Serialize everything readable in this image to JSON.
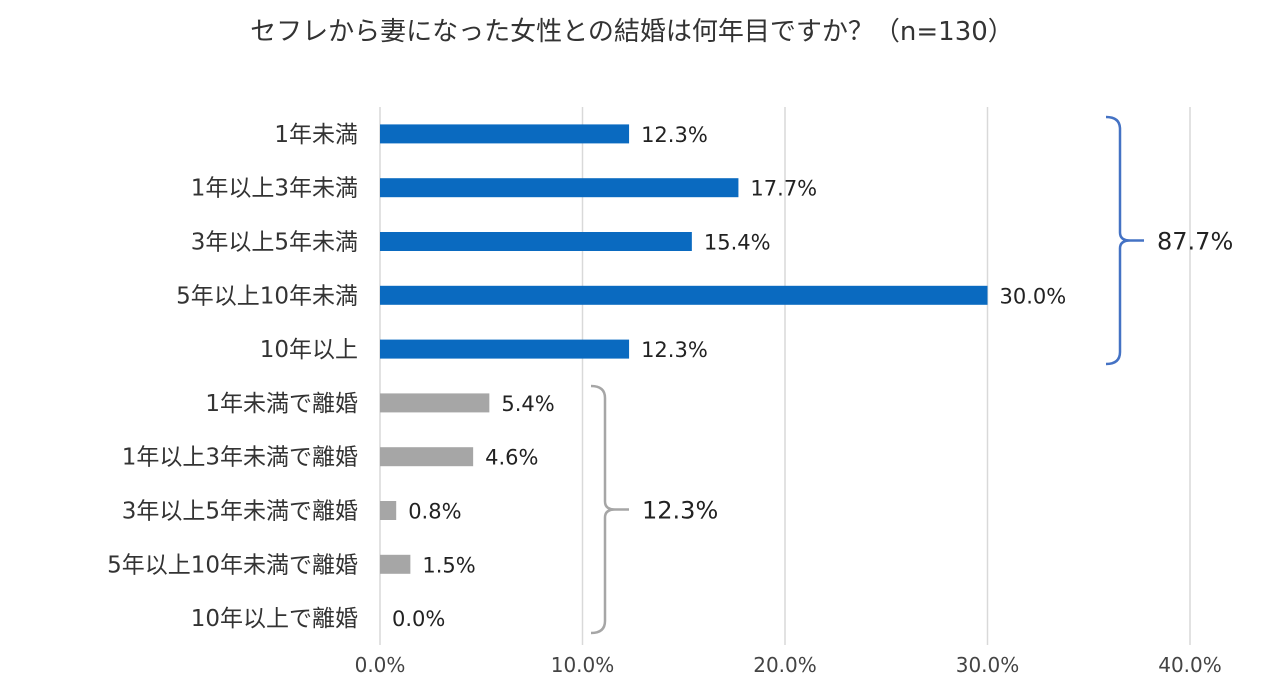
{
  "chart_data": {
    "type": "bar",
    "orientation": "horizontal",
    "title": "セフレから妻になった女性との結婚は何年目ですか？（n=130）",
    "categories": [
      "1年未満",
      "1年以上3年未満",
      "3年以上5年未満",
      "5年以上10年未満",
      "10年以上",
      "1年未満で離婚",
      "1年以上3年未満で離婚",
      "3年以上5年未満で離婚",
      "5年以上10年未満で離婚",
      "10年以上で離婚"
    ],
    "values": [
      12.3,
      17.7,
      15.4,
      30.0,
      12.3,
      5.4,
      4.6,
      0.8,
      1.5,
      0.0
    ],
    "value_labels": [
      "12.3%",
      "17.7%",
      "15.4%",
      "30.0%",
      "12.3%",
      "5.4%",
      "4.6%",
      "0.8%",
      "1.5%",
      "0.0%"
    ],
    "bar_colors": [
      "#0a6ac0",
      "#0a6ac0",
      "#0a6ac0",
      "#0a6ac0",
      "#0a6ac0",
      "#a6a6a6",
      "#a6a6a6",
      "#a6a6a6",
      "#a6a6a6",
      "#a6a6a6"
    ],
    "xlim": [
      0,
      40
    ],
    "xticks": [
      "0.0%",
      "10.0%",
      "20.0%",
      "30.0%",
      "40.0%"
    ],
    "xlabel": "",
    "ylabel": "",
    "grid": true,
    "groups": [
      {
        "label": "87.7%",
        "first_index": 0,
        "last_index": 4,
        "color": "#4472c4"
      },
      {
        "label": "12.3%",
        "first_index": 5,
        "last_index": 9,
        "color": "#a6a6a6"
      }
    ]
  }
}
